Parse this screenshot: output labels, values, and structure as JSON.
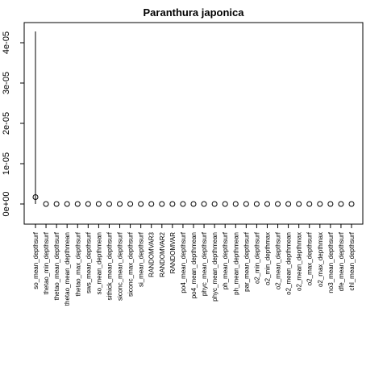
{
  "chart_data": {
    "type": "scatter",
    "title": "Paranthura japonica",
    "xlabel": "",
    "ylabel": "",
    "ylim": [
      -5e-06,
      4.5e-05
    ],
    "yticks": [
      0,
      1e-05,
      2e-05,
      3e-05,
      4e-05
    ],
    "ytick_labels": [
      "0e+00",
      "1e-05",
      "2e-05",
      "3e-05",
      "4e-05"
    ],
    "grid": false,
    "categories": [
      "so_mean_depthsurf",
      "thetao_min_depthsurf",
      "thetao_mean_depthsurf",
      "thetao_mean_depthmean",
      "thetao_max_depthsurf",
      "sws_mean_depthsurf",
      "so_mean_depthmean",
      "sithick_mean_depthsurf",
      "siconc_mean_depthsurf",
      "siconc_max_depthsurf",
      "si_mean_depthsurf",
      "RANDOMVAR3",
      "RANDOMVAR2",
      "RANDOMVAR",
      "po4_mean_depthsurf",
      "po4_mean_depthmean",
      "phyc_mean_depthsurf",
      "phyc_mean_depthmean",
      "ph_mean_depthsurf",
      "ph_mean_depthmean",
      "par_mean_depthsurf",
      "o2_min_depthsurf",
      "o2_min_depthmax",
      "o2_mean_depthsurf",
      "o2_mean_depthmean",
      "o2_mean_depthmax",
      "o2_max_depthsurf",
      "o2_max_depthmax",
      "no3_mean_depthsurf",
      "dfe_mean_depthsurf",
      "chl_mean_depthsurf"
    ],
    "values": [
      1.7e-06,
      0,
      0,
      0,
      0,
      0,
      0,
      0,
      0,
      0,
      0,
      0,
      0,
      0,
      0,
      0,
      0,
      0,
      0,
      0,
      0,
      0,
      0,
      0,
      0,
      0,
      0,
      0,
      0,
      0,
      0
    ],
    "error_upper": [
      4.28e-05,
      0,
      0,
      0,
      0,
      0,
      0,
      0,
      0,
      0,
      0,
      0,
      0,
      0,
      0,
      0,
      0,
      0,
      0,
      0,
      0,
      0,
      0,
      0,
      0,
      0,
      0,
      0,
      0,
      0,
      0
    ],
    "error_lower": [
      0,
      0,
      0,
      0,
      0,
      0,
      0,
      0,
      0,
      0,
      0,
      0,
      0,
      0,
      0,
      0,
      0,
      0,
      0,
      0,
      0,
      0,
      0,
      0,
      0,
      0,
      0,
      0,
      0,
      0,
      0
    ]
  }
}
